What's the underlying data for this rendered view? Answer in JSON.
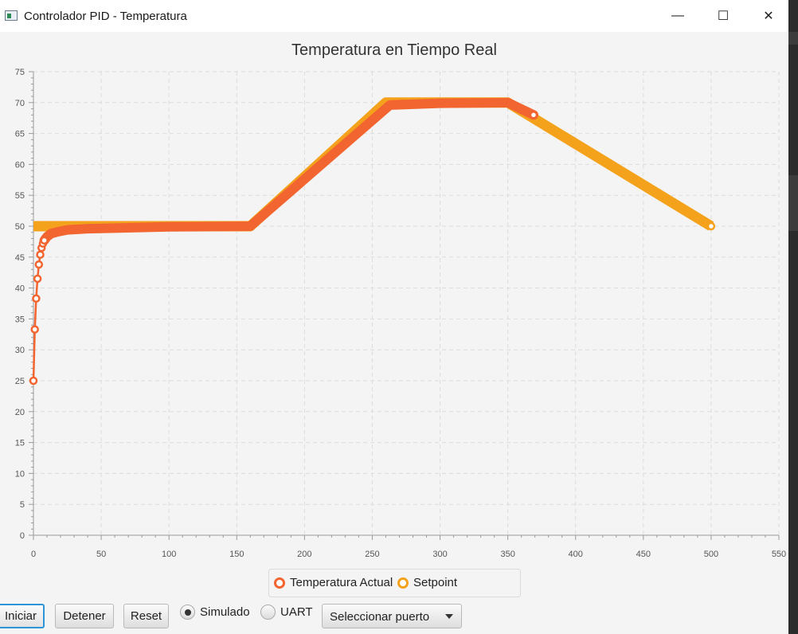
{
  "window": {
    "title": "Controlador PID - Temperatura",
    "minimize_glyph": "—",
    "maximize_glyph": "☐",
    "close_glyph": "✕"
  },
  "chart_data": {
    "type": "line",
    "title": "Temperatura en Tiempo Real",
    "xlabel": "",
    "ylabel": "",
    "xlim": [
      0,
      550
    ],
    "ylim": [
      0,
      75
    ],
    "x_ticks": [
      0,
      50,
      100,
      150,
      200,
      250,
      300,
      350,
      400,
      450,
      500,
      550
    ],
    "y_ticks": [
      0,
      5,
      10,
      15,
      20,
      25,
      30,
      35,
      40,
      45,
      50,
      55,
      60,
      65,
      70,
      75
    ],
    "grid": true,
    "legend_position": "bottom",
    "series": [
      {
        "name": "Setpoint",
        "color": "#f4a21c",
        "points": [
          [
            0,
            50
          ],
          [
            160,
            50
          ],
          [
            260,
            70
          ],
          [
            350,
            70
          ],
          [
            500,
            50
          ]
        ],
        "marker_at": [
          500,
          50
        ]
      },
      {
        "name": "Temperatura Actual",
        "color": "#f26430",
        "points": [
          [
            0,
            25
          ],
          [
            1,
            33.3
          ],
          [
            2,
            38.3
          ],
          [
            3,
            41.5
          ],
          [
            4,
            43.8
          ],
          [
            5,
            45.4
          ],
          [
            6,
            46.5
          ],
          [
            7,
            47.2
          ],
          [
            8,
            47.7
          ],
          [
            10,
            48.3
          ],
          [
            13,
            48.8
          ],
          [
            18,
            49.1
          ],
          [
            25,
            49.4
          ],
          [
            40,
            49.6
          ],
          [
            60,
            49.7
          ],
          [
            100,
            49.9
          ],
          [
            160,
            50
          ],
          [
            263,
            69.6
          ],
          [
            300,
            69.9
          ],
          [
            350,
            70
          ],
          [
            369,
            68
          ]
        ],
        "marker_points": [
          [
            0,
            25
          ],
          [
            1,
            33.3
          ],
          [
            2,
            38.3
          ],
          [
            3,
            41.5
          ],
          [
            4,
            43.8
          ],
          [
            5,
            45.4
          ],
          [
            6,
            46.5
          ],
          [
            7,
            47.2
          ],
          [
            8,
            47.7
          ],
          [
            369,
            68
          ]
        ]
      }
    ]
  },
  "legend": {
    "items": [
      {
        "label": "Temperatura Actual",
        "color": "#f26430"
      },
      {
        "label": "Setpoint",
        "color": "#f4a21c"
      }
    ]
  },
  "controls": {
    "start_label": "Iniciar",
    "stop_label": "Detener",
    "reset_label": "Reset",
    "mode_simulated_label": "Simulado",
    "mode_uart_label": "UART",
    "mode_selected": "Simulado",
    "port_select_label": "Seleccionar puerto"
  }
}
